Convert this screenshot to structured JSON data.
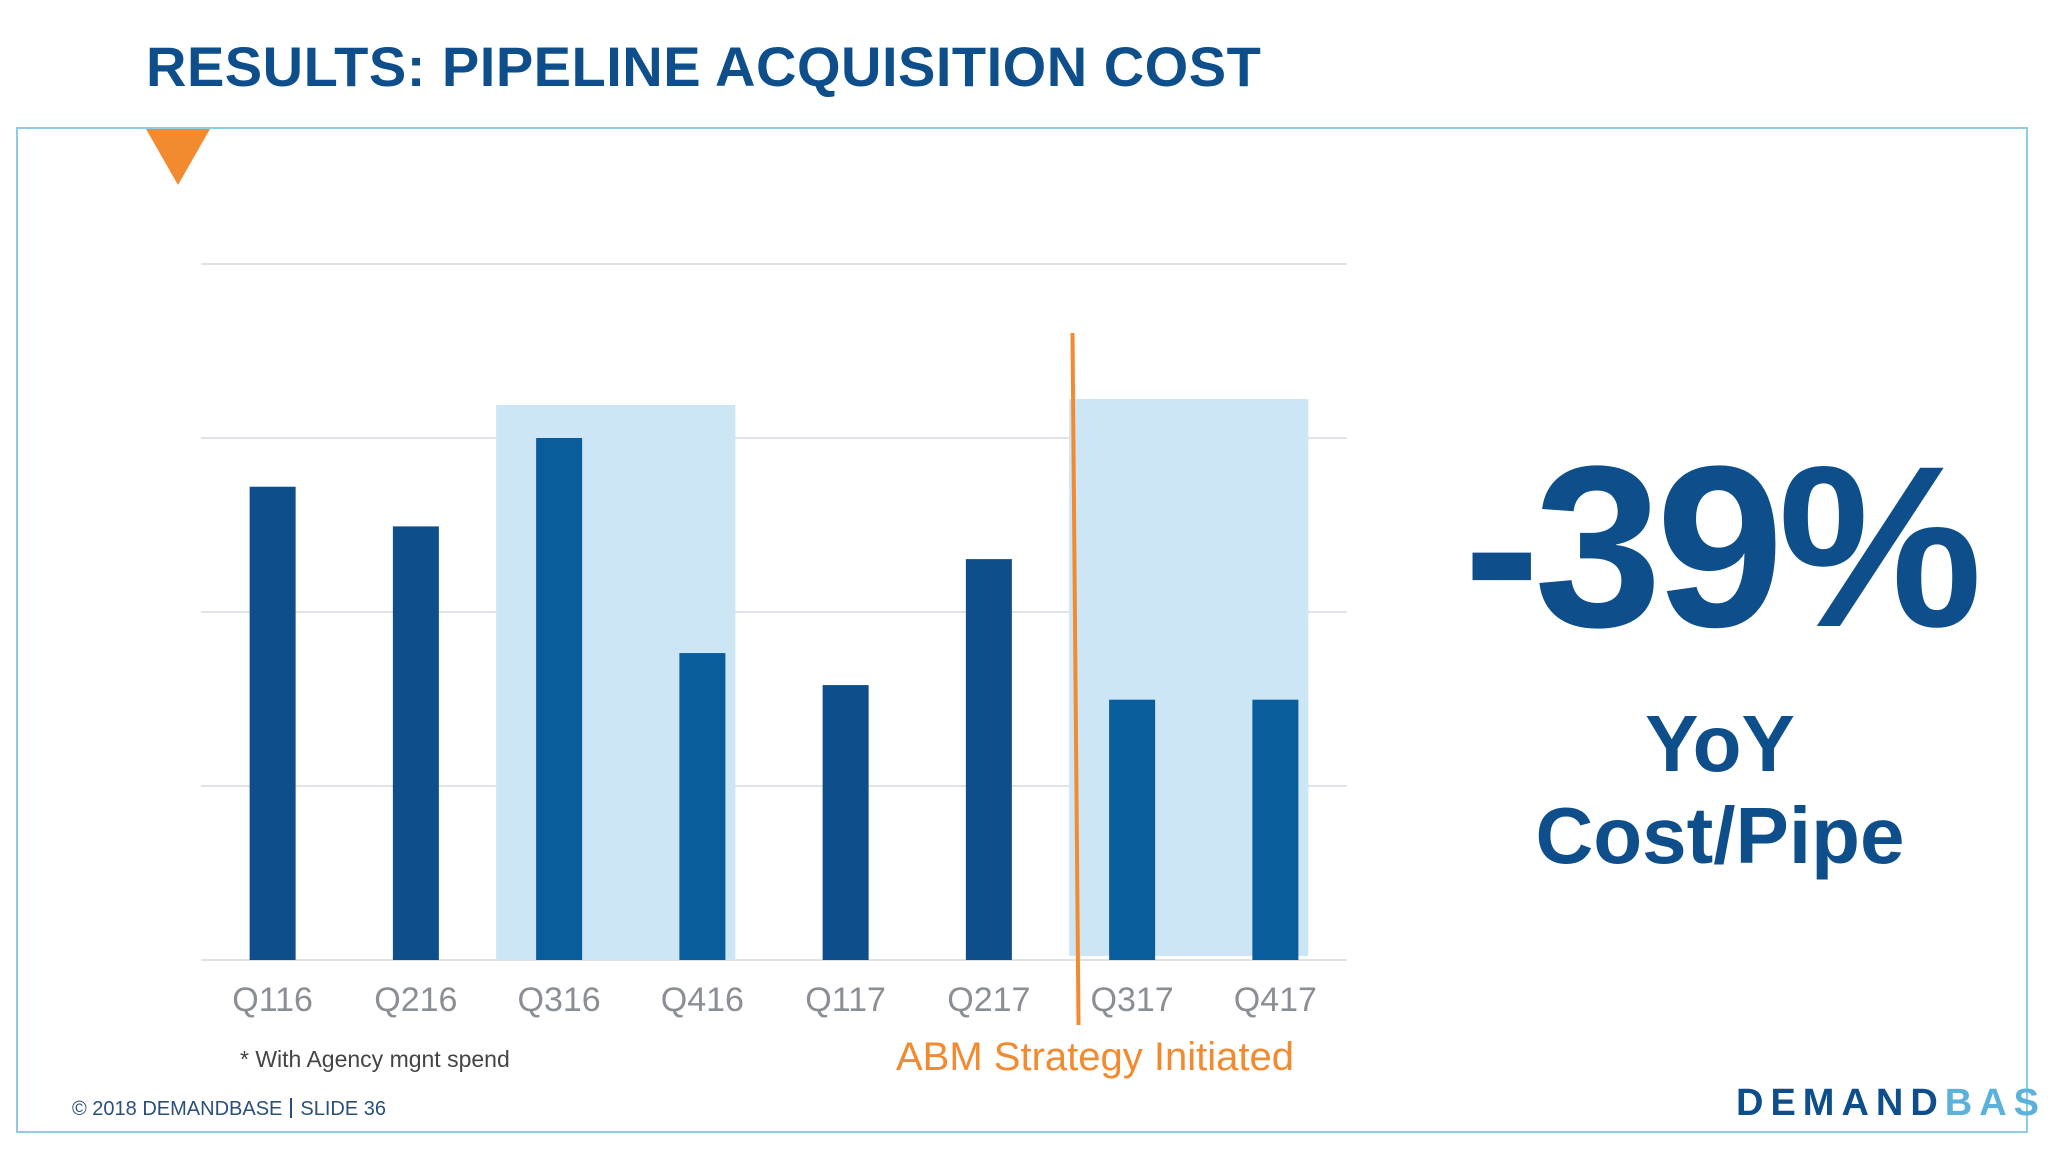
{
  "slide": {
    "title": "RESULTS: PIPELINE ACQUISITION COST",
    "footnote": "* With Agency mgnt spend",
    "annotation": "ABM Strategy Initiated",
    "kpi_value": "-39%",
    "kpi_line1": "YoY",
    "kpi_line2": "Cost/Pipe",
    "footer_copyright": "© 2018 DEMANDBASE",
    "footer_slide": "SLIDE 36",
    "logo_part1": "DEMAND",
    "logo_part2": "BASE"
  },
  "colors": {
    "bar": "#0e4f8b",
    "bar_highlighted": "#0a5d9c",
    "highlight": "#cde6f5",
    "annotation_line": "#f28a30",
    "grid": "#dfe3e7"
  },
  "chart_data": {
    "type": "bar",
    "title": "",
    "xlabel": "",
    "ylabel": "",
    "categories": [
      "Q116",
      "Q216",
      "Q316",
      "Q416",
      "Q117",
      "Q217",
      "Q317",
      "Q417"
    ],
    "values": [
      68,
      62.3,
      75,
      44.1,
      39.5,
      57.6,
      37.4,
      37.4
    ],
    "ylim": [
      0,
      100
    ],
    "y_tick_labels_shown": false,
    "grid": true,
    "highlighted_periods": [
      [
        "Q316",
        "Q416"
      ],
      [
        "Q317",
        "Q417"
      ]
    ],
    "annotation_line_between": [
      "Q217",
      "Q317"
    ]
  }
}
